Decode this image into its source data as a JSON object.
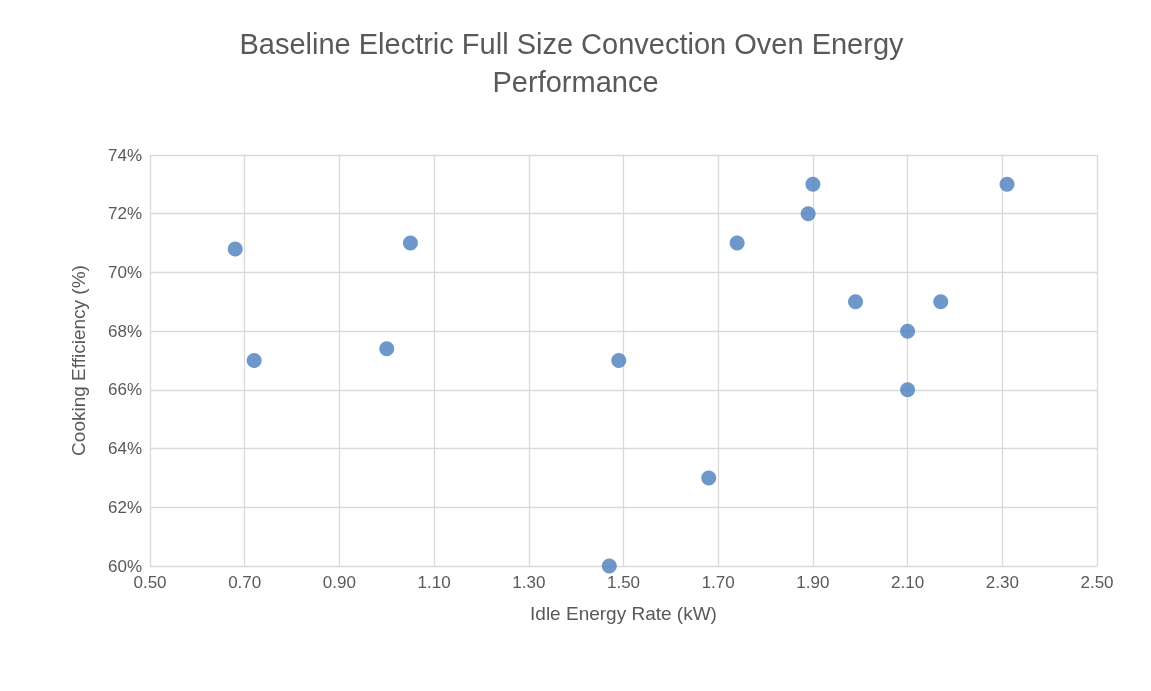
{
  "chart_data": {
    "type": "scatter",
    "title": "Baseline Electric Full Size Convection Oven Energy Performance",
    "xlabel": "Idle Energy Rate (kW)",
    "ylabel": "Cooking Efficiency (%)",
    "x": [
      0.68,
      0.72,
      1.0,
      1.05,
      1.47,
      1.49,
      1.68,
      1.74,
      1.89,
      1.9,
      1.99,
      2.1,
      2.1,
      2.17,
      2.31
    ],
    "series": [
      {
        "color": "#4a7ebb",
        "values": [
          70.8,
          67,
          67.4,
          71,
          60,
          67,
          63,
          71,
          72,
          73,
          69,
          68,
          66,
          69,
          73
        ]
      }
    ],
    "xlim": [
      0.5,
      2.5
    ],
    "xticks": [
      {
        "value": 0.5,
        "label": "0.50"
      },
      {
        "value": 0.7,
        "label": "0.70"
      },
      {
        "value": 0.9,
        "label": "0.90"
      },
      {
        "value": 1.1,
        "label": "1.10"
      },
      {
        "value": 1.3,
        "label": "1.30"
      },
      {
        "value": 1.5,
        "label": "1.50"
      },
      {
        "value": 1.7,
        "label": "1.70"
      },
      {
        "value": 1.9,
        "label": "1.90"
      },
      {
        "value": 2.1,
        "label": "2.10"
      },
      {
        "value": 2.3,
        "label": "2.30"
      },
      {
        "value": 2.5,
        "label": "2.50"
      }
    ],
    "ylim": [
      60,
      74
    ],
    "yticks": [
      {
        "value": 60,
        "label": "60%"
      },
      {
        "value": 62,
        "label": "62%"
      },
      {
        "value": 64,
        "label": "64%"
      },
      {
        "value": 66,
        "label": "66%"
      },
      {
        "value": 68,
        "label": "68%"
      },
      {
        "value": 70,
        "label": "70%"
      },
      {
        "value": 72,
        "label": "72%"
      },
      {
        "value": 74,
        "label": "74%"
      }
    ],
    "grid": true,
    "marker": "circle"
  }
}
